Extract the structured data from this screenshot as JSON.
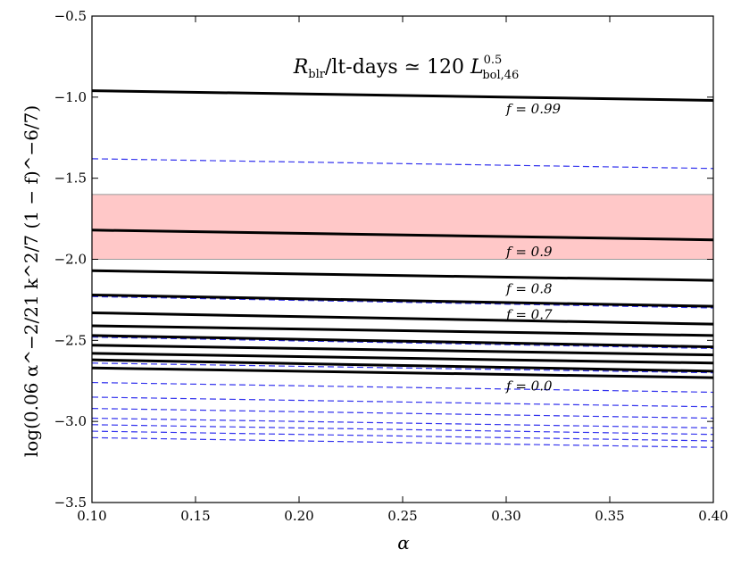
{
  "chart_data": {
    "type": "line",
    "title": "R_blr/lt-days ≃ 120 L_bol,46^0.5",
    "title_parts": {
      "r": "R",
      "r_sub": "blr",
      "middle": "/lt-days ≃ 120 ",
      "l": "L",
      "l_sup": "0.5",
      "l_sub": "bol,46"
    },
    "xlabel": "α",
    "ylabel": "log(0.06 α^−2/21 k^2/7 (1 − f)^−6/7)",
    "xlim": [
      0.1,
      0.4
    ],
    "ylim": [
      -3.5,
      -0.5
    ],
    "x_ticks": [
      "0.10",
      "0.15",
      "0.20",
      "0.25",
      "0.30",
      "0.35",
      "0.40"
    ],
    "y_ticks": [
      "−0.5",
      "−1.0",
      "−1.5",
      "−2.0",
      "−2.5",
      "−3.0",
      "−3.5"
    ],
    "grid": false,
    "band": {
      "y_from": -2.0,
      "y_to": -1.6,
      "color": "#ffc8c8",
      "edge_color": "#999999"
    },
    "solid_color": "#000000",
    "dashed_color": "#3333ee",
    "solid_series": [
      {
        "name": "f = 0.99",
        "x": [
          0.1,
          0.4
        ],
        "y": [
          -0.96,
          -1.02
        ]
      },
      {
        "name": "f = 0.9",
        "x": [
          0.1,
          0.4
        ],
        "y": [
          -1.82,
          -1.88
        ]
      },
      {
        "name": "f = 0.8",
        "x": [
          0.1,
          0.4
        ],
        "y": [
          -2.07,
          -2.13
        ]
      },
      {
        "name": "f = 0.7",
        "x": [
          0.1,
          0.4
        ],
        "y": [
          -2.22,
          -2.29
        ]
      },
      {
        "x": [
          0.1,
          0.4
        ],
        "y": [
          -2.33,
          -2.4
        ]
      },
      {
        "x": [
          0.1,
          0.4
        ],
        "y": [
          -2.41,
          -2.47
        ]
      },
      {
        "x": [
          0.1,
          0.4
        ],
        "y": [
          -2.47,
          -2.54
        ]
      },
      {
        "x": [
          0.1,
          0.4
        ],
        "y": [
          -2.53,
          -2.59
        ]
      },
      {
        "x": [
          0.1,
          0.4
        ],
        "y": [
          -2.58,
          -2.64
        ]
      },
      {
        "x": [
          0.1,
          0.4
        ],
        "y": [
          -2.62,
          -2.69
        ]
      },
      {
        "name": "f = 0.0",
        "x": [
          0.1,
          0.4
        ],
        "y": [
          -2.67,
          -2.73
        ]
      }
    ],
    "dashed_series": [
      {
        "x": [
          0.1,
          0.4
        ],
        "y": [
          -1.38,
          -1.44
        ]
      },
      {
        "x": [
          0.1,
          0.4
        ],
        "y": [
          -2.23,
          -2.3
        ]
      },
      {
        "x": [
          0.1,
          0.4
        ],
        "y": [
          -2.48,
          -2.55
        ]
      },
      {
        "x": [
          0.1,
          0.4
        ],
        "y": [
          -2.64,
          -2.7
        ]
      },
      {
        "x": [
          0.1,
          0.4
        ],
        "y": [
          -2.76,
          -2.82
        ]
      },
      {
        "x": [
          0.1,
          0.4
        ],
        "y": [
          -2.85,
          -2.91
        ]
      },
      {
        "x": [
          0.1,
          0.4
        ],
        "y": [
          -2.92,
          -2.98
        ]
      },
      {
        "x": [
          0.1,
          0.4
        ],
        "y": [
          -2.98,
          -3.04
        ]
      },
      {
        "x": [
          0.1,
          0.4
        ],
        "y": [
          -3.02,
          -3.08
        ]
      },
      {
        "x": [
          0.1,
          0.4
        ],
        "y": [
          -3.06,
          -3.12
        ]
      },
      {
        "x": [
          0.1,
          0.4
        ],
        "y": [
          -3.1,
          -3.16
        ]
      }
    ],
    "annotations": [
      {
        "text": "f = 0.99",
        "x": 0.3,
        "y": -1.1
      },
      {
        "text": "f = 0.9",
        "x": 0.3,
        "y": -1.98
      },
      {
        "text": "f = 0.8",
        "x": 0.3,
        "y": -2.21
      },
      {
        "text": "f = 0.7",
        "x": 0.3,
        "y": -2.37
      },
      {
        "text": "f = 0.0",
        "x": 0.3,
        "y": -2.81
      }
    ]
  }
}
